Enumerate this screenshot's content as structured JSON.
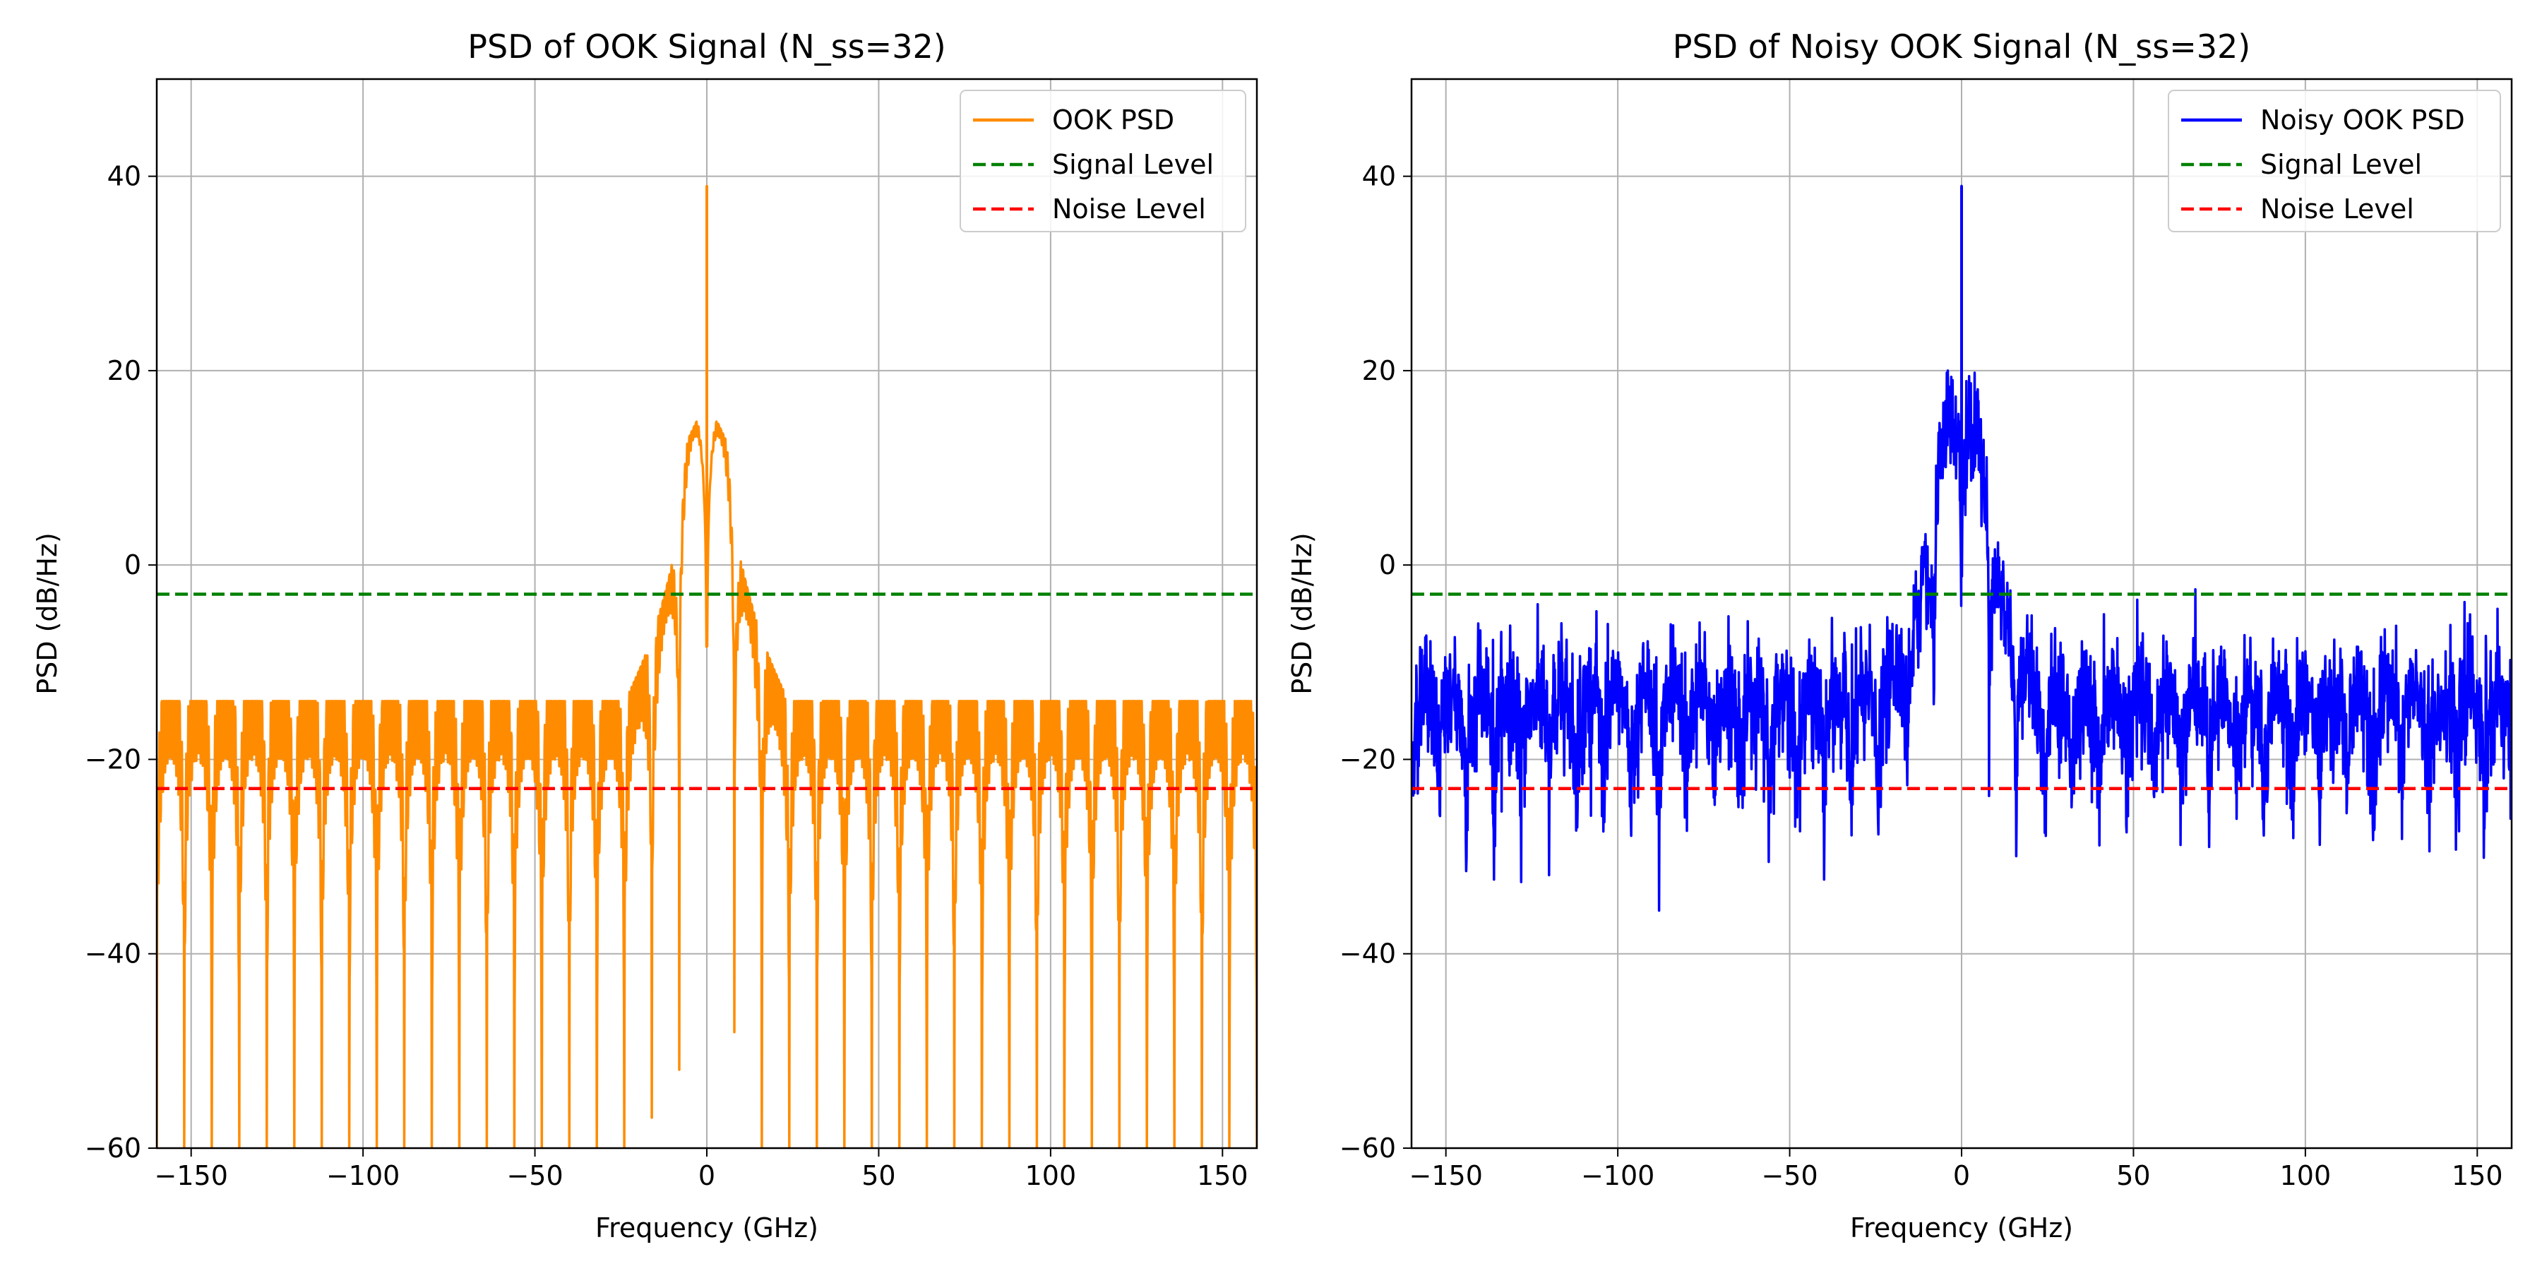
{
  "chart_data": [
    {
      "type": "line",
      "title": "PSD of OOK Signal (N_ss=32)",
      "xlabel": "Frequency (GHz)",
      "ylabel": "PSD (dB/Hz)",
      "xlim": [
        -160,
        160
      ],
      "ylim": [
        -60,
        50
      ],
      "xticks": [
        -150,
        -100,
        -50,
        0,
        50,
        100,
        150
      ],
      "xtick_labels": [
        "−150",
        "−100",
        "−50",
        "0",
        "50",
        "100",
        "150"
      ],
      "yticks": [
        -60,
        -40,
        -20,
        0,
        20,
        40
      ],
      "ytick_labels": [
        "−60",
        "−40",
        "−20",
        "0",
        "20",
        "40"
      ],
      "grid": true,
      "legend_position": "top-right",
      "series": [
        {
          "name": "OOK PSD",
          "color": "#ff8c00",
          "style": "solid",
          "kind": "psd-clean",
          "envelope_peak_db": 17,
          "center_spike_db": 39,
          "far_peak_db": -14,
          "floor_db": -42,
          "null_depth_db": -60,
          "lobe_spacing_ghz": 8
        },
        {
          "name": "Signal Level",
          "color": "#008000",
          "style": "dashed",
          "y": -3
        },
        {
          "name": "Noise Level",
          "color": "#ff0000",
          "style": "dashed",
          "y": -23
        }
      ]
    },
    {
      "type": "line",
      "title": "PSD of Noisy OOK Signal (N_ss=32)",
      "xlabel": "Frequency (GHz)",
      "ylabel": "PSD (dB/Hz)",
      "xlim": [
        -160,
        160
      ],
      "ylim": [
        -60,
        50
      ],
      "xticks": [
        -150,
        -100,
        -50,
        0,
        50,
        100,
        150
      ],
      "xtick_labels": [
        "−150",
        "−100",
        "−50",
        "0",
        "50",
        "100",
        "150"
      ],
      "yticks": [
        -60,
        -40,
        -20,
        0,
        20,
        40
      ],
      "ytick_labels": [
        "−60",
        "−40",
        "−20",
        "0",
        "20",
        "40"
      ],
      "grid": true,
      "legend_position": "top-right",
      "series": [
        {
          "name": "Noisy OOK PSD",
          "color": "#0000ff",
          "style": "solid",
          "kind": "psd-noisy",
          "envelope_peak_db": 17,
          "center_spike_db": 39,
          "noise_mean_db": -23,
          "noise_spread_db": 8
        },
        {
          "name": "Signal Level",
          "color": "#008000",
          "style": "dashed",
          "y": -3
        },
        {
          "name": "Noise Level",
          "color": "#ff0000",
          "style": "dashed",
          "y": -23
        }
      ]
    }
  ]
}
